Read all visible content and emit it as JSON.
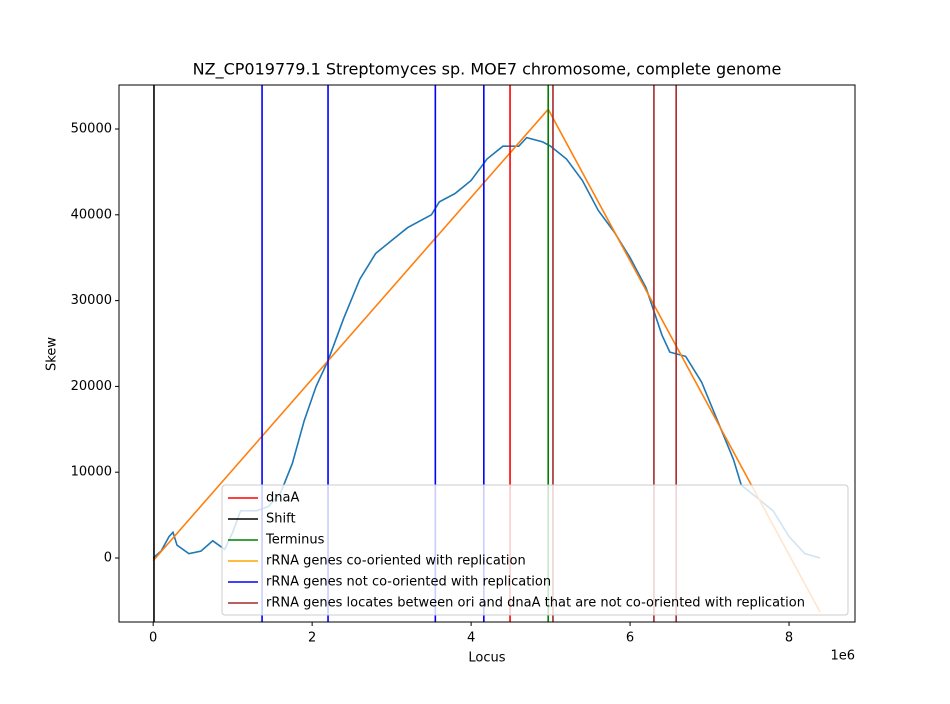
{
  "chart_data": {
    "type": "line",
    "title": "NZ_CP019779.1 Streptomyces sp. MOE7 chromosome, complete genome",
    "xlabel": "Locus",
    "ylabel": "Skew",
    "x_offset_label": "1e6",
    "xlim": [
      -430000,
      8830000
    ],
    "ylim": [
      -7460,
      55130
    ],
    "xticks": [
      {
        "value": 0,
        "label": "0"
      },
      {
        "value": 2000000,
        "label": "2"
      },
      {
        "value": 4000000,
        "label": "4"
      },
      {
        "value": 6000000,
        "label": "6"
      },
      {
        "value": 8000000,
        "label": "8"
      }
    ],
    "yticks": [
      0,
      10000,
      20000,
      30000,
      40000,
      50000
    ],
    "series": [
      {
        "color": "#1f77b4",
        "x": [
          0,
          100000,
          200000,
          250000,
          300000,
          450000,
          600000,
          750000,
          900000,
          1000000,
          1100000,
          1300000,
          1450000,
          1600000,
          1750000,
          1900000,
          2050000,
          2200000,
          2400000,
          2600000,
          2800000,
          3000000,
          3200000,
          3400000,
          3500000,
          3600000,
          3800000,
          4000000,
          4200000,
          4400000,
          4600000,
          4700000,
          4900000,
          5000000,
          5200000,
          5400000,
          5600000,
          5800000,
          6000000,
          6200000,
          6400000,
          6500000,
          6700000,
          6900000,
          7100000,
          7300000,
          7400000,
          7600000,
          7800000,
          8000000,
          8200000,
          8390000
        ],
        "values": [
          0,
          800,
          2500,
          3000,
          1500,
          500,
          800,
          2000,
          1000,
          3000,
          5500,
          5500,
          6000,
          7500,
          11000,
          16000,
          20000,
          23000,
          28000,
          32500,
          35500,
          37000,
          38500,
          39500,
          40000,
          41500,
          42500,
          44000,
          46500,
          48000,
          48000,
          49000,
          48500,
          48000,
          46500,
          44000,
          40500,
          38000,
          35000,
          31500,
          26000,
          24000,
          23500,
          20500,
          16000,
          11500,
          8500,
          7000,
          5500,
          2500,
          500,
          0
        ]
      },
      {
        "color": "#ff7f0e",
        "x": [
          0,
          4970000,
          8390000
        ],
        "values": [
          -300,
          52300,
          -6300
        ]
      }
    ],
    "vlines": [
      {
        "name": "dnaA",
        "color": "red",
        "x": [
          4490000
        ]
      },
      {
        "name": "Shift",
        "color": "black",
        "x": [
          10000
        ]
      },
      {
        "name": "Terminus",
        "color": "green",
        "x": [
          4970000
        ]
      },
      {
        "name": "rRNA genes co-oriented with replication",
        "color": "orange",
        "x": []
      },
      {
        "name": "rRNA genes not co-oriented with replication",
        "color": "blue",
        "x": [
          1370000,
          2200000,
          3550000,
          4160000
        ]
      },
      {
        "name": "rRNA genes locates between ori and dnaA that are not co-oriented with replication",
        "color": "brown",
        "x": [
          5030000,
          6300000,
          6580000
        ]
      }
    ],
    "legend": "lower right"
  }
}
